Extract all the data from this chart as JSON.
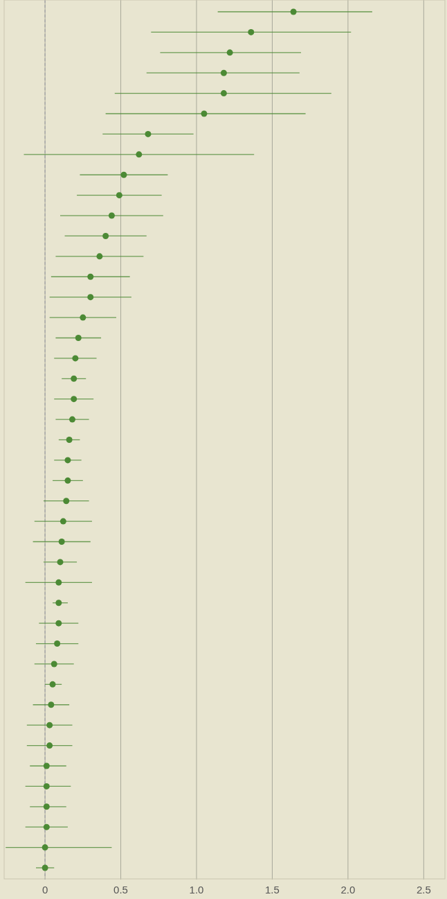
{
  "chart_data": {
    "type": "scatter",
    "orientation": "horizontal",
    "categories": [
      null,
      null,
      null,
      null,
      null,
      null,
      null,
      null,
      null,
      null,
      null,
      null,
      null,
      null,
      null,
      null,
      null,
      null,
      null,
      null,
      null,
      null,
      null,
      null,
      null,
      null,
      null,
      null,
      null,
      null,
      null,
      null,
      null,
      null,
      null,
      null,
      null,
      null,
      null,
      null,
      null,
      null,
      null
    ],
    "values": [
      1.64,
      1.36,
      1.22,
      1.18,
      1.18,
      1.05,
      0.68,
      0.62,
      0.52,
      0.49,
      0.44,
      0.4,
      0.36,
      0.3,
      0.3,
      0.25,
      0.22,
      0.2,
      0.19,
      0.19,
      0.18,
      0.16,
      0.15,
      0.15,
      0.14,
      0.12,
      0.11,
      0.1,
      0.09,
      0.09,
      0.09,
      0.08,
      0.06,
      0.05,
      0.04,
      0.03,
      0.03,
      0.01,
      0.01,
      0.01,
      0.01,
      0,
      0
    ],
    "errors": [
      [
        1.14,
        2.16
      ],
      [
        0.7,
        2.02
      ],
      [
        0.76,
        1.69
      ],
      [
        0.67,
        1.68
      ],
      [
        0.46,
        1.89
      ],
      [
        0.4,
        1.72
      ],
      [
        0.38,
        0.98
      ],
      [
        -0.14,
        1.38
      ],
      [
        0.23,
        0.81
      ],
      [
        0.21,
        0.77
      ],
      [
        0.1,
        0.78
      ],
      [
        0.13,
        0.67
      ],
      [
        0.07,
        0.65
      ],
      [
        0.04,
        0.56
      ],
      [
        0.03,
        0.57
      ],
      [
        0.03,
        0.47
      ],
      [
        0.07,
        0.37
      ],
      [
        0.06,
        0.34
      ],
      [
        0.11,
        0.27
      ],
      [
        0.06,
        0.32
      ],
      [
        0.07,
        0.29
      ],
      [
        0.09,
        0.23
      ],
      [
        0.06,
        0.24
      ],
      [
        0.05,
        0.25
      ],
      [
        -0.01,
        0.29
      ],
      [
        -0.07,
        0.31
      ],
      [
        -0.08,
        0.3
      ],
      [
        -0.01,
        0.21
      ],
      [
        -0.13,
        0.31
      ],
      [
        0.05,
        0.15
      ],
      [
        -0.04,
        0.22
      ],
      [
        -0.06,
        0.22
      ],
      [
        -0.07,
        0.19
      ],
      [
        0,
        0.11
      ],
      [
        -0.08,
        0.16
      ],
      [
        -0.12,
        0.18
      ],
      [
        -0.12,
        0.18
      ],
      [
        -0.1,
        0.14
      ],
      [
        -0.13,
        0.17
      ],
      [
        -0.1,
        0.14
      ],
      [
        -0.13,
        0.15
      ],
      [
        -0.26,
        0.44
      ],
      [
        -0.06,
        0.06
      ]
    ],
    "color": "#4c8a35",
    "marker": "circle",
    "xlim": [
      -0.27,
      2.64
    ],
    "xticks": [
      0,
      0.5,
      {
        "value": 1,
        "label": "1.0"
      },
      {
        "value": 1.5,
        "label": "1.5"
      },
      {
        "value": 2,
        "label": "2.0"
      },
      {
        "value": 2.5,
        "label": "2.5"
      }
    ],
    "grid": "x",
    "tick_labels": "x",
    "ref_lines": [
      {
        "axis": "x",
        "value": 0,
        "line_style": "dashed",
        "color": "#aaaaaa"
      }
    ]
  }
}
